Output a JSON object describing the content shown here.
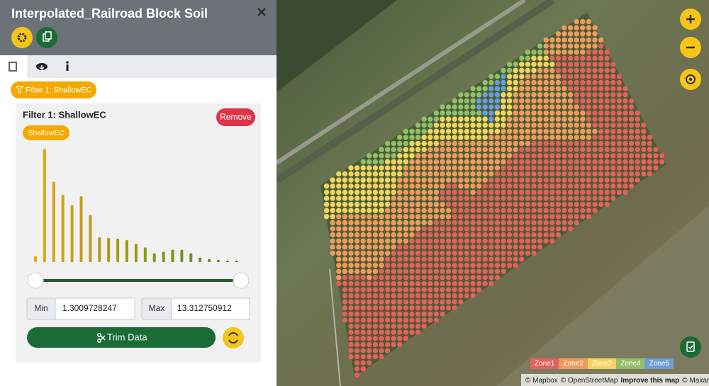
{
  "header": {
    "title": "Interpolated_Railroad Block Soil"
  },
  "filter_chip": "Filter 1: ShallowEC",
  "filter": {
    "title": "Filter 1: ShallowEC",
    "remove": "Remove",
    "attribute": "ShallowEC",
    "histogram": {
      "values": [
        8,
        155,
        110,
        92,
        78,
        90,
        64,
        34,
        33,
        32,
        30,
        25,
        20,
        12,
        14,
        17,
        17,
        12,
        6,
        4,
        3,
        2,
        2
      ]
    },
    "min_label": "Min",
    "min": "1.3009728247",
    "max_label": "Max",
    "max": "13.312750912",
    "trim": "Trim Data"
  },
  "map": {
    "legend": [
      {
        "name": "Zone1",
        "color": "#e2625c"
      },
      {
        "name": "Zone2",
        "color": "#f19a5e"
      },
      {
        "name": "Zone3",
        "color": "#f4d35e"
      },
      {
        "name": "Zone4",
        "color": "#93bf68"
      },
      {
        "name": "Zone5",
        "color": "#6b9ddd"
      }
    ],
    "attribution": [
      "© Mapbox",
      "© OpenStreetMap",
      "Improve this map",
      "© Maxar"
    ]
  }
}
